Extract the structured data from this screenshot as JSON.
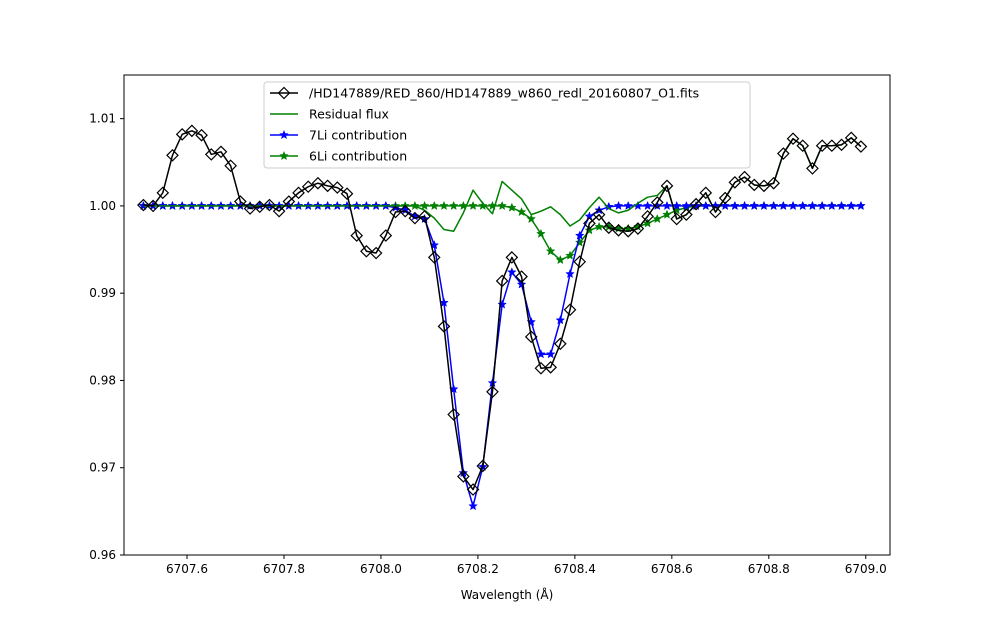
{
  "chart_data": {
    "type": "line",
    "title": "",
    "xlabel": "Wavelength (Å)",
    "ylabel": "",
    "xlim": [
      6707.47,
      6709.05
    ],
    "ylim": [
      0.96,
      1.015
    ],
    "grid": false,
    "legend_placement": "upper-center",
    "xticks": [
      "6707.6",
      "6707.8",
      "6708.0",
      "6708.2",
      "6708.4",
      "6708.6",
      "6708.8",
      "6709.0"
    ],
    "yticks": [
      "0.96",
      "0.97",
      "0.98",
      "0.99",
      "1.00",
      "1.01"
    ],
    "x": [
      6707.51,
      6707.53,
      6707.55,
      6707.57,
      6707.59,
      6707.61,
      6707.63,
      6707.65,
      6707.67,
      6707.69,
      6707.71,
      6707.73,
      6707.75,
      6707.77,
      6707.79,
      6707.81,
      6707.83,
      6707.85,
      6707.87,
      6707.89,
      6707.91,
      6707.93,
      6707.95,
      6707.97,
      6707.99,
      6708.01,
      6708.03,
      6708.05,
      6708.07,
      6708.09,
      6708.11,
      6708.13,
      6708.15,
      6708.17,
      6708.19,
      6708.21,
      6708.23,
      6708.25,
      6708.27,
      6708.29,
      6708.31,
      6708.33,
      6708.35,
      6708.37,
      6708.39,
      6708.41,
      6708.43,
      6708.45,
      6708.47,
      6708.49,
      6708.51,
      6708.53,
      6708.55,
      6708.57,
      6708.59,
      6708.61,
      6708.63,
      6708.65,
      6708.67,
      6708.69,
      6708.71,
      6708.73,
      6708.75,
      6708.77,
      6708.79,
      6708.81,
      6708.83,
      6708.85,
      6708.87,
      6708.89,
      6708.91,
      6708.93,
      6708.95,
      6708.97,
      6708.99
    ],
    "series": [
      {
        "name": "/HD147889/RED_860/HD147889_w860_redl_20160807_O1.fits",
        "color": "#000000",
        "marker": "diamond",
        "values": [
          1.0001,
          1.0,
          1.0015,
          1.0058,
          1.0082,
          1.0086,
          1.0081,
          1.0059,
          1.0062,
          1.0046,
          1.0005,
          0.9997,
          0.9999,
          1.0001,
          0.9994,
          1.0005,
          1.0015,
          1.0022,
          1.0026,
          1.0023,
          1.0021,
          1.0014,
          0.9966,
          0.9948,
          0.9946,
          0.9966,
          0.9993,
          0.9994,
          0.9986,
          0.9988,
          0.9941,
          0.9862,
          0.9761,
          0.969,
          0.9675,
          0.9702,
          0.9787,
          0.9914,
          0.9941,
          0.9919,
          0.985,
          0.9814,
          0.9815,
          0.9842,
          0.9881,
          0.9936,
          0.998,
          0.999,
          0.9975,
          0.9972,
          0.9971,
          0.9974,
          0.9988,
          1.0004,
          1.0023,
          0.9985,
          0.999,
          1.0002,
          1.0015,
          0.9993,
          1.0009,
          1.0027,
          1.0033,
          1.0024,
          1.0023,
          1.0026,
          1.006,
          1.0077,
          1.0069,
          1.0043,
          1.0069,
          1.0069,
          1.007,
          1.0078,
          1.0068
        ]
      },
      {
        "name": "Residual flux",
        "color": "#008000",
        "marker": "none",
        "values": [
          1.0,
          1.0,
          1.0,
          1.0,
          1.0,
          1.0,
          1.0,
          1.0,
          1.0,
          1.0,
          1.0,
          1.0,
          1.0,
          1.0,
          1.0,
          1.0,
          1.0,
          1.0,
          1.0,
          1.0,
          1.0,
          1.0,
          1.0,
          1.0,
          1.0,
          1.0,
          1.0,
          1.0,
          1.0,
          0.9995,
          0.9986,
          0.9973,
          0.9971,
          0.9992,
          1.0018,
          1.0003,
          0.9991,
          1.0028,
          1.0018,
          1.0008,
          0.999,
          0.9994,
          0.9999,
          0.999,
          0.9977,
          0.9984,
          0.9998,
          1.001,
          0.9997,
          0.9992,
          0.9995,
          1.0003,
          1.001,
          1.0012,
          1.0023,
          0.9985,
          0.999,
          1.0002,
          1.0015,
          0.9993,
          1.0009,
          1.0027,
          1.0033,
          1.0024,
          1.0023,
          1.0026,
          1.006,
          1.0077,
          1.0069,
          1.0043,
          1.0069,
          1.0069,
          1.007,
          1.0078,
          1.0068
        ]
      },
      {
        "name": "7Li contribution",
        "color": "#0000ff",
        "marker": "star",
        "values": [
          1.0,
          1.0,
          1.0,
          1.0,
          1.0,
          1.0,
          1.0,
          1.0,
          1.0,
          1.0,
          1.0,
          1.0,
          1.0,
          1.0,
          1.0,
          1.0,
          1.0,
          1.0,
          1.0,
          1.0,
          1.0,
          1.0,
          1.0,
          1.0,
          1.0,
          1.0,
          0.9998,
          0.9995,
          0.9988,
          0.9985,
          0.9955,
          0.9889,
          0.979,
          0.9694,
          0.9656,
          0.9701,
          0.9797,
          0.9887,
          0.9924,
          0.991,
          0.9867,
          0.983,
          0.983,
          0.9869,
          0.9922,
          0.9966,
          0.9988,
          0.9995,
          0.9999,
          1.0,
          1.0,
          1.0,
          1.0,
          1.0,
          1.0,
          1.0,
          1.0,
          1.0,
          1.0,
          1.0,
          1.0,
          1.0,
          1.0,
          1.0,
          1.0,
          1.0,
          1.0,
          1.0,
          1.0,
          1.0,
          1.0,
          1.0,
          1.0,
          1.0,
          1.0
        ]
      },
      {
        "name": "6Li contribution",
        "color": "#008000",
        "marker": "star",
        "values": [
          1.0,
          1.0,
          1.0,
          1.0,
          1.0,
          1.0,
          1.0,
          1.0,
          1.0,
          1.0,
          1.0,
          1.0,
          1.0,
          1.0,
          1.0,
          1.0,
          1.0,
          1.0,
          1.0,
          1.0,
          1.0,
          1.0,
          1.0,
          1.0,
          1.0,
          1.0,
          1.0,
          1.0,
          1.0,
          1.0,
          1.0,
          1.0,
          1.0,
          1.0,
          1.0,
          1.0,
          1.0,
          1.0,
          0.9998,
          0.9993,
          0.9985,
          0.9968,
          0.9948,
          0.9938,
          0.9943,
          0.9958,
          0.9972,
          0.9976,
          0.9976,
          0.9974,
          0.9974,
          0.9976,
          0.998,
          0.9985,
          0.999,
          0.9995,
          0.9998,
          1.0,
          1.0,
          1.0,
          1.0,
          1.0,
          1.0,
          1.0,
          1.0,
          1.0,
          1.0,
          1.0,
          1.0,
          1.0,
          1.0,
          1.0,
          1.0,
          1.0,
          1.0
        ]
      }
    ]
  }
}
